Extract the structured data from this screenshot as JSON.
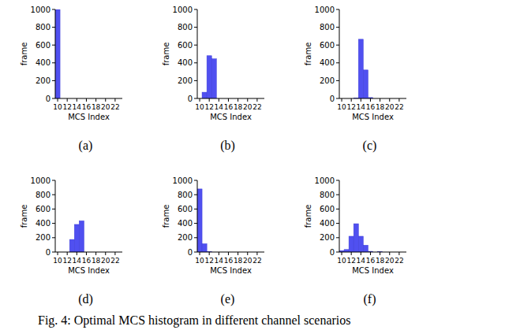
{
  "chart_data": [
    {
      "type": "histogram",
      "title": "(a)",
      "xlabel": "MCS Index",
      "ylabel": "frame",
      "color": "#5050f0",
      "bins": [
        9.5,
        10.5
      ],
      "values": [
        1000
      ],
      "xlim": [
        9.5,
        23.5
      ],
      "xticks": [
        10,
        12,
        14,
        16,
        18,
        20,
        22
      ],
      "ylim": [
        0,
        1000
      ],
      "yticks": [
        0,
        200,
        400,
        600,
        800,
        1000
      ]
    },
    {
      "type": "histogram",
      "title": "(b)",
      "xlabel": "MCS Index",
      "ylabel": "frame",
      "color": "#5050f0",
      "bins": [
        10.5,
        11.5,
        12.5,
        13.5
      ],
      "values": [
        70,
        480,
        445
      ],
      "xlim": [
        9.5,
        23.5
      ],
      "xticks": [
        10,
        12,
        14,
        16,
        18,
        20,
        22
      ],
      "ylim": [
        0,
        1000
      ],
      "yticks": [
        0,
        200,
        400,
        600,
        800,
        1000
      ]
    },
    {
      "type": "histogram",
      "title": "(c)",
      "xlabel": "MCS Index",
      "ylabel": "frame",
      "color": "#5050f0",
      "bins": [
        12.5,
        13.5,
        14.5,
        15.5,
        16.5
      ],
      "values": [
        5,
        665,
        320,
        10
      ],
      "xlim": [
        9.5,
        23.5
      ],
      "xticks": [
        10,
        12,
        14,
        16,
        18,
        20,
        22
      ],
      "ylim": [
        0,
        1000
      ],
      "yticks": [
        0,
        200,
        400,
        600,
        800,
        1000
      ]
    },
    {
      "type": "histogram",
      "title": "(d)",
      "xlabel": "MCS Index",
      "ylabel": "frame",
      "color": "#5050f0",
      "bins": [
        12.5,
        13.5,
        14.5,
        15.5
      ],
      "values": [
        175,
        385,
        435
      ],
      "xlim": [
        9.5,
        23.5
      ],
      "xticks": [
        10,
        12,
        14,
        16,
        18,
        20,
        22
      ],
      "ylim": [
        0,
        1000
      ],
      "yticks": [
        0,
        200,
        400,
        600,
        800,
        1000
      ]
    },
    {
      "type": "histogram",
      "title": "(e)",
      "xlabel": "MCS Index",
      "ylabel": "frame",
      "color": "#5050f0",
      "bins": [
        9.5,
        10.5,
        11.5,
        12.5
      ],
      "values": [
        880,
        115,
        5
      ],
      "xlim": [
        9.5,
        23.5
      ],
      "xticks": [
        10,
        12,
        14,
        16,
        18,
        20,
        22
      ],
      "ylim": [
        0,
        1000
      ],
      "yticks": [
        0,
        200,
        400,
        600,
        800,
        1000
      ]
    },
    {
      "type": "histogram",
      "title": "(f)",
      "xlabel": "MCS Index",
      "ylabel": "frame",
      "color": "#5050f0",
      "bins": [
        9.5,
        10.5,
        11.5,
        12.5,
        13.5,
        14.5,
        15.5,
        16.5,
        17.5,
        18.5
      ],
      "values": [
        20,
        35,
        220,
        395,
        220,
        95,
        10,
        0,
        3
      ],
      "xlim": [
        9.5,
        23.5
      ],
      "xticks": [
        10,
        12,
        14,
        16,
        18,
        20,
        22
      ],
      "ylim": [
        0,
        1000
      ],
      "yticks": [
        0,
        200,
        400,
        600,
        800,
        1000
      ]
    }
  ],
  "caption": "Fig. 4: Optimal MCS histogram in different channel scenarios"
}
